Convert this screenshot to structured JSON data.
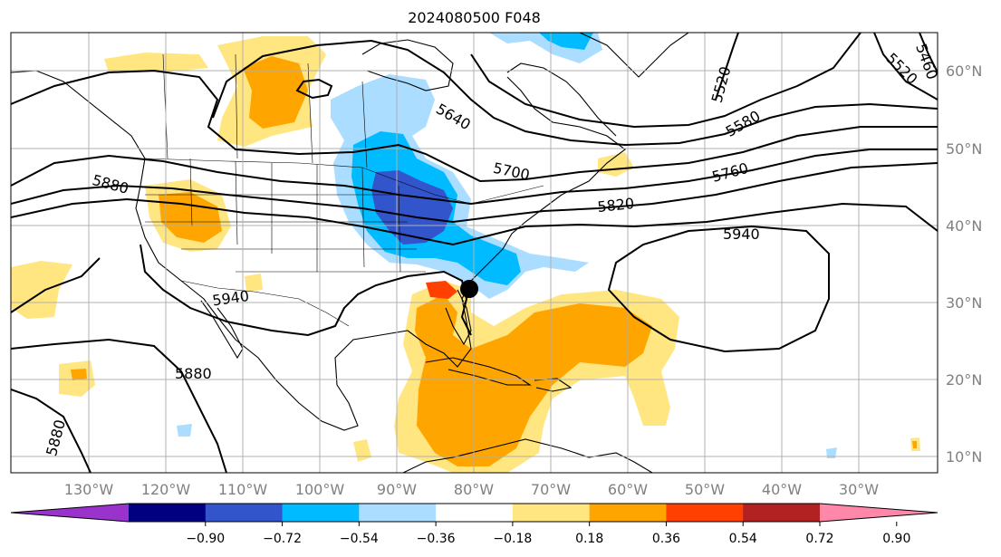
{
  "title": "2024080500 F048",
  "lat_labels": [
    "60°N",
    "50°N",
    "40°N",
    "30°N",
    "20°N",
    "10°N"
  ],
  "lon_labels": [
    "130°W",
    "120°W",
    "110°W",
    "100°W",
    "90°W",
    "80°W",
    "70°W",
    "60°W",
    "50°W",
    "40°W",
    "30°W"
  ],
  "contour_labels": [
    "5460",
    "5520",
    "5520",
    "5580",
    "5640",
    "5700",
    "5760",
    "5820",
    "5880",
    "5880",
    "5880",
    "5940",
    "5940"
  ],
  "colorbar": {
    "ticks": [
      "−0.90",
      "−0.72",
      "−0.54",
      "−0.36",
      "−0.18",
      "0.18",
      "0.36",
      "0.54",
      "0.72",
      "0.90"
    ],
    "colors": [
      "#9933cc",
      "#000080",
      "#3355cc",
      "#00bbff",
      "#aaddff",
      "#ffffff",
      "#ffe680",
      "#ffa500",
      "#ff4000",
      "#b22222",
      "#ff88aa"
    ]
  },
  "colors": {
    "neg_light": "#aaddff",
    "neg_mid": "#00bbff",
    "neg_strong": "#3355cc",
    "pos_light": "#ffe680",
    "pos_mid": "#ffa500",
    "pos_strong": "#ff4000",
    "grid": "#b0b0b0"
  }
}
